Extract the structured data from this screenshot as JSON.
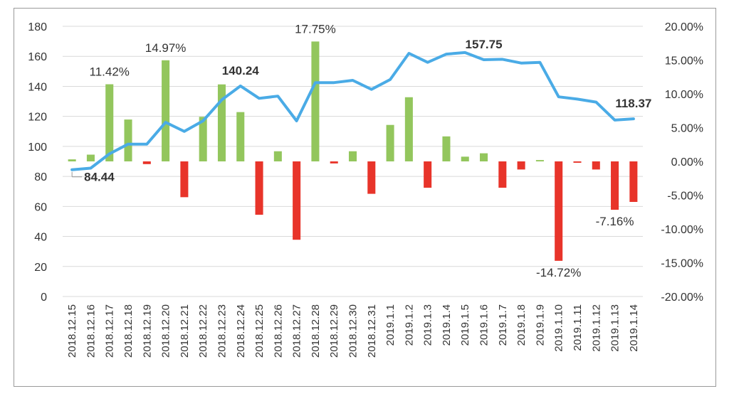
{
  "chart_data": {
    "type": "bar+line",
    "categories": [
      "2018.12.15",
      "2018.12.16",
      "2018.12.17",
      "2018.12.18",
      "2018.12.19",
      "2018.12.20",
      "2018.12.21",
      "2018.12.22",
      "2018.12.23",
      "2018.12.24",
      "2018.12.25",
      "2018.12.26",
      "2018.12.27",
      "2018.12.28",
      "2018.12.29",
      "2018.12.30",
      "2018.12.31",
      "2019.1.1",
      "2019.1.2",
      "2019.1.3",
      "2019.1.4",
      "2019.1.5",
      "2019.1.6",
      "2019.1.7",
      "2019.1.8",
      "2019.1.9",
      "2019.1.10",
      "2019.1.11",
      "2019.1.12",
      "2019.1.13",
      "2019.1.14"
    ],
    "line_values": [
      84.44,
      85.5,
      95.0,
      101.5,
      101.5,
      116.0,
      110.0,
      117.0,
      131.0,
      140.24,
      132.0,
      133.5,
      117.0,
      142.5,
      142.5,
      144.0,
      138.0,
      144.5,
      162.0,
      156.0,
      161.5,
      162.5,
      157.75,
      158.0,
      155.5,
      156.0,
      133.0,
      131.5,
      129.5,
      117.5,
      118.37
    ],
    "bar_values": [
      0.3,
      1.0,
      11.42,
      6.2,
      -0.4,
      14.97,
      -5.3,
      6.6,
      11.4,
      7.3,
      -7.9,
      1.5,
      -11.6,
      17.75,
      -0.3,
      1.5,
      -4.8,
      5.4,
      9.5,
      -3.9,
      3.7,
      0.7,
      1.2,
      -3.9,
      -1.2,
      0.2,
      -14.72,
      -0.2,
      -1.2,
      -7.16,
      -6.0
    ],
    "line_color": "#4aabe6",
    "bar_positive_color": "#93c65d",
    "bar_negative_color": "#e8342a",
    "ylim_left": [
      0,
      180
    ],
    "yticks_left": [
      "0",
      "20",
      "40",
      "60",
      "80",
      "100",
      "120",
      "140",
      "160",
      "180"
    ],
    "ylim_right": [
      -20,
      20
    ],
    "yticks_right": [
      "-20.00%",
      "-15.00%",
      "-10.00%",
      "-5.00%",
      "0.00%",
      "5.00%",
      "10.00%",
      "15.00%",
      "20.00%"
    ],
    "annotations": {
      "bars": [
        {
          "index": 2,
          "text": "11.42%"
        },
        {
          "index": 5,
          "text": "14.97%"
        },
        {
          "index": 13,
          "text": "17.75%"
        },
        {
          "index": 26,
          "text": "-14.72%"
        },
        {
          "index": 29,
          "text": "-7.16%"
        }
      ],
      "line": [
        {
          "index": 0,
          "text": "84.44"
        },
        {
          "index": 9,
          "text": "140.24"
        },
        {
          "index": 22,
          "text": "157.75"
        },
        {
          "index": 30,
          "text": "118.37"
        }
      ]
    }
  }
}
